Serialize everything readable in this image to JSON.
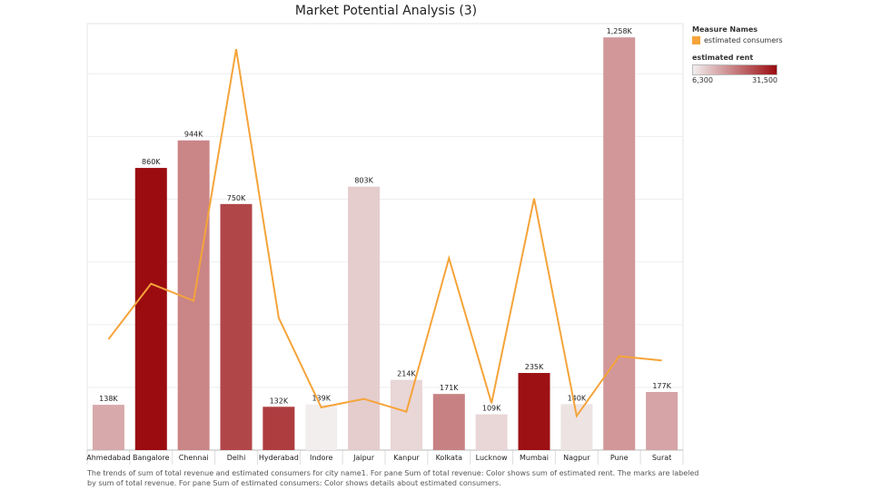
{
  "chart_data": {
    "type": "bar",
    "title": "Market Potential Analysis (3)",
    "categories": [
      "Ahmedabad",
      "Bangalore",
      "Chennai",
      "Delhi",
      "Hyderabad",
      "Indore",
      "Jaipur",
      "Kanpur",
      "Kolkata",
      "Lucknow",
      "Mumbai",
      "Nagpur",
      "Pune",
      "Surat"
    ],
    "series": [
      {
        "name": "sum of total revenue",
        "values": [
          138000,
          860000,
          944000,
          750000,
          132000,
          139000,
          803000,
          214000,
          171000,
          109000,
          235000,
          140000,
          1258000,
          177000
        ],
        "labels": [
          "138K",
          "860K",
          "944K",
          "750K",
          "132K",
          "139K",
          "803K",
          "214K",
          "171K",
          "109K",
          "235K",
          "140K",
          "1,258K",
          "177K"
        ]
      },
      {
        "name": "estimated consumers",
        "type": "line",
        "values": [
          0.26,
          0.39,
          0.35,
          0.94,
          0.31,
          0.1,
          0.12,
          0.09,
          0.45,
          0.11,
          0.59,
          0.08,
          0.22,
          0.21
        ]
      }
    ],
    "estimated_rent": [
      14000,
      31500,
      18000,
      25000,
      26000,
      6300,
      10000,
      9000,
      18500,
      9000,
      31000,
      7500,
      16000,
      14500
    ],
    "ylim": [
      0,
      1300000
    ],
    "grid": true
  },
  "legend": {
    "measure_heading": "Measure Names",
    "line_label": "estimated consumers",
    "line_color": "#F5A43A",
    "rent_heading": "estimated rent",
    "rent_min": "6,300",
    "rent_max": "31,500",
    "rent_color_low": "#f2eeee",
    "rent_color_high": "#9b0c10"
  },
  "caption": "The trends of sum of total revenue and estimated consumers for city name1.  For pane Sum of total revenue:  Color shows sum of estimated rent.  The marks are labeled by sum of total revenue.  For pane Sum of estimated consumers:  Color shows details about estimated consumers."
}
